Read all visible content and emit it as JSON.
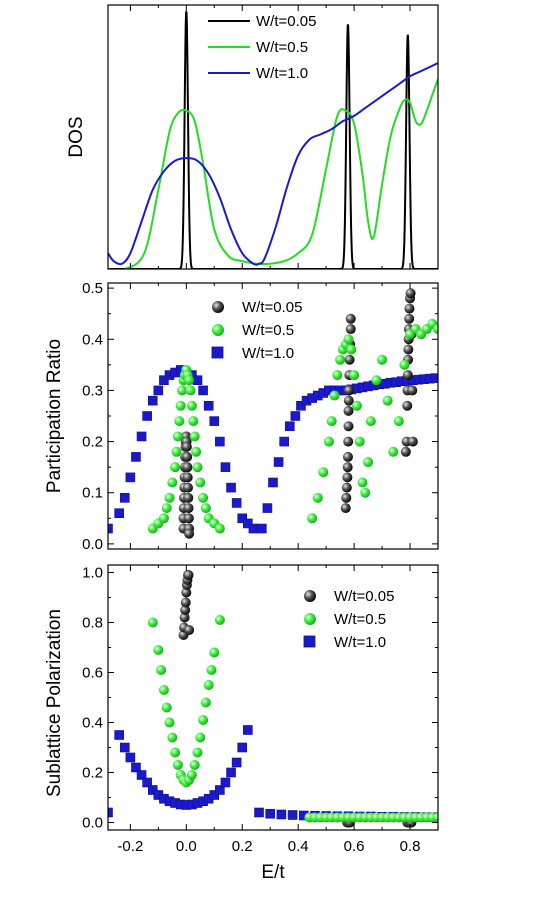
{
  "xlabel": "E/t",
  "colors": {
    "s005": "#000000",
    "s05": "#22dd22",
    "s10": "#1a1acc"
  },
  "chart_data": [
    {
      "type": "line",
      "ylabel": "DOS",
      "xlim": [
        -0.28,
        0.9
      ],
      "ylim": [
        0,
        1.0
      ],
      "legend": "top-center",
      "x_ticks": [
        -0.2,
        0.0,
        0.2,
        0.4,
        0.6,
        0.8
      ],
      "x_tick_labels_shown": false,
      "y_tick_labels_shown": false,
      "series": [
        {
          "name": "W/t=0.05",
          "color": "#000000",
          "peaks": [
            {
              "x": 0.0,
              "h": 0.98,
              "w": 0.006
            },
            {
              "x": 0.578,
              "h": 0.93,
              "w": 0.006
            },
            {
              "x": 0.792,
              "h": 0.89,
              "w": 0.006
            }
          ]
        },
        {
          "name": "W/t=0.5",
          "color": "#22dd22",
          "x": [
            -0.28,
            -0.22,
            -0.15,
            -0.1,
            -0.06,
            -0.03,
            0.0,
            0.03,
            0.06,
            0.1,
            0.15,
            0.2,
            0.25,
            0.3,
            0.35,
            0.4,
            0.45,
            0.5,
            0.54,
            0.57,
            0.6,
            0.63,
            0.65,
            0.67,
            0.7,
            0.73,
            0.76,
            0.78,
            0.8,
            0.82,
            0.84,
            0.86,
            0.88,
            0.9
          ],
          "y": [
            0.0,
            0.0,
            0.06,
            0.3,
            0.52,
            0.59,
            0.6,
            0.56,
            0.4,
            0.15,
            0.05,
            0.03,
            0.02,
            0.02,
            0.03,
            0.06,
            0.13,
            0.38,
            0.58,
            0.6,
            0.55,
            0.36,
            0.18,
            0.12,
            0.32,
            0.5,
            0.6,
            0.64,
            0.63,
            0.56,
            0.55,
            0.6,
            0.66,
            0.72
          ]
        },
        {
          "name": "W/t=1.0",
          "color": "#1a1acc",
          "x": [
            -0.28,
            -0.26,
            -0.23,
            -0.2,
            -0.16,
            -0.12,
            -0.08,
            -0.04,
            0.0,
            0.04,
            0.08,
            0.12,
            0.16,
            0.2,
            0.24,
            0.26,
            0.28,
            0.32,
            0.36,
            0.4,
            0.44,
            0.48,
            0.52,
            0.56,
            0.6,
            0.64,
            0.68,
            0.72,
            0.76,
            0.8,
            0.84,
            0.88,
            0.9
          ],
          "y": [
            0.06,
            0.03,
            0.02,
            0.06,
            0.18,
            0.3,
            0.37,
            0.41,
            0.42,
            0.41,
            0.36,
            0.27,
            0.15,
            0.06,
            0.02,
            0.02,
            0.04,
            0.16,
            0.31,
            0.43,
            0.49,
            0.51,
            0.53,
            0.56,
            0.58,
            0.61,
            0.64,
            0.67,
            0.7,
            0.73,
            0.75,
            0.77,
            0.78
          ]
        }
      ]
    },
    {
      "type": "scatter",
      "ylabel": "Participation Ratio",
      "xlim": [
        -0.28,
        0.9
      ],
      "ylim": [
        -0.01,
        0.51
      ],
      "legend": "top-center",
      "y_ticks": [
        0.0,
        0.1,
        0.2,
        0.3,
        0.4,
        0.5
      ],
      "y_tick_labels": [
        "0.0",
        "0.1",
        "0.2",
        "0.3",
        "0.4",
        "0.5"
      ],
      "x_ticks": [
        -0.2,
        0.0,
        0.2,
        0.4,
        0.6,
        0.8
      ],
      "x_tick_labels_shown": false,
      "series": [
        {
          "name": "W/t=0.05",
          "color": "#000000",
          "marker": "sphere",
          "x": [
            -0.01,
            -0.01,
            -0.009,
            -0.008,
            -0.007,
            -0.006,
            -0.005,
            -0.004,
            -0.003,
            -0.002,
            -0.001,
            0.0,
            0.001,
            0.002,
            0.003,
            0.004,
            0.005,
            0.006,
            0.007,
            0.008,
            0.009,
            0.01,
            0.01,
            0.57,
            0.572,
            0.574,
            0.576,
            0.577,
            0.578,
            0.579,
            0.58,
            0.58,
            0.581,
            0.582,
            0.583,
            0.584,
            0.586,
            0.588,
            0.588,
            0.785,
            0.788,
            0.79,
            0.791,
            0.792,
            0.793,
            0.794,
            0.795,
            0.796,
            0.797,
            0.798,
            0.8,
            0.802,
            0.805,
            0.808,
            0.81
          ],
          "y": [
            0.03,
            0.05,
            0.07,
            0.09,
            0.11,
            0.13,
            0.15,
            0.17,
            0.19,
            0.2,
            0.21,
            0.21,
            0.2,
            0.19,
            0.17,
            0.15,
            0.13,
            0.11,
            0.09,
            0.07,
            0.05,
            0.03,
            0.02,
            0.07,
            0.09,
            0.11,
            0.13,
            0.15,
            0.17,
            0.2,
            0.23,
            0.26,
            0.28,
            0.3,
            0.33,
            0.36,
            0.39,
            0.42,
            0.44,
            0.18,
            0.2,
            0.27,
            0.3,
            0.33,
            0.36,
            0.38,
            0.4,
            0.42,
            0.44,
            0.46,
            0.48,
            0.49,
            0.41,
            0.3,
            0.2
          ]
        },
        {
          "name": "W/t=0.5",
          "color": "#22dd22",
          "marker": "sphere",
          "x": [
            -0.12,
            -0.1,
            -0.08,
            -0.07,
            -0.06,
            -0.05,
            -0.04,
            -0.035,
            -0.03,
            -0.025,
            -0.02,
            -0.015,
            -0.01,
            -0.005,
            0.0,
            0.005,
            0.01,
            0.015,
            0.02,
            0.025,
            0.03,
            0.035,
            0.04,
            0.05,
            0.06,
            0.07,
            0.08,
            0.1,
            0.12,
            0.45,
            0.47,
            0.49,
            0.51,
            0.52,
            0.53,
            0.54,
            0.55,
            0.56,
            0.57,
            0.58,
            0.59,
            0.6,
            0.61,
            0.62,
            0.63,
            0.64,
            0.65,
            0.66,
            0.68,
            0.7,
            0.72,
            0.74,
            0.76,
            0.78,
            0.8,
            0.82,
            0.84,
            0.86,
            0.88,
            0.9
          ],
          "y": [
            0.03,
            0.04,
            0.05,
            0.07,
            0.09,
            0.12,
            0.15,
            0.18,
            0.21,
            0.24,
            0.27,
            0.3,
            0.32,
            0.33,
            0.34,
            0.33,
            0.32,
            0.3,
            0.27,
            0.24,
            0.21,
            0.18,
            0.15,
            0.12,
            0.09,
            0.07,
            0.05,
            0.04,
            0.03,
            0.05,
            0.09,
            0.14,
            0.2,
            0.24,
            0.29,
            0.33,
            0.36,
            0.38,
            0.39,
            0.4,
            0.38,
            0.33,
            0.27,
            0.2,
            0.12,
            0.1,
            0.16,
            0.24,
            0.32,
            0.36,
            0.28,
            0.18,
            0.24,
            0.35,
            0.41,
            0.42,
            0.41,
            0.42,
            0.43,
            0.42
          ]
        },
        {
          "name": "W/t=1.0",
          "color": "#1a1acc",
          "marker": "square",
          "x": [
            -0.28,
            -0.24,
            -0.22,
            -0.2,
            -0.18,
            -0.16,
            -0.14,
            -0.12,
            -0.1,
            -0.08,
            -0.06,
            -0.04,
            -0.02,
            0.0,
            0.02,
            0.04,
            0.06,
            0.08,
            0.1,
            0.12,
            0.14,
            0.16,
            0.18,
            0.2,
            0.22,
            0.24,
            0.27,
            0.29,
            0.31,
            0.33,
            0.35,
            0.37,
            0.39,
            0.41,
            0.43,
            0.45,
            0.47,
            0.49,
            0.51,
            0.53,
            0.55,
            0.57,
            0.59,
            0.61,
            0.63,
            0.65,
            0.67,
            0.69,
            0.71,
            0.73,
            0.75,
            0.77,
            0.79,
            0.81,
            0.83,
            0.85,
            0.87,
            0.89
          ],
          "y": [
            0.03,
            0.06,
            0.09,
            0.13,
            0.17,
            0.21,
            0.25,
            0.28,
            0.3,
            0.32,
            0.33,
            0.335,
            0.34,
            0.335,
            0.33,
            0.32,
            0.3,
            0.27,
            0.24,
            0.2,
            0.15,
            0.11,
            0.08,
            0.05,
            0.04,
            0.03,
            0.03,
            0.07,
            0.12,
            0.16,
            0.2,
            0.23,
            0.25,
            0.27,
            0.28,
            0.285,
            0.29,
            0.295,
            0.3,
            0.3,
            0.3,
            0.3,
            0.302,
            0.304,
            0.306,
            0.308,
            0.31,
            0.312,
            0.313,
            0.315,
            0.316,
            0.318,
            0.319,
            0.32,
            0.321,
            0.322,
            0.323,
            0.324
          ]
        }
      ]
    },
    {
      "type": "scatter",
      "ylabel": "Sublattice Polarization",
      "xlabel": "E/t",
      "xlim": [
        -0.28,
        0.9
      ],
      "ylim": [
        -0.03,
        1.03
      ],
      "legend": "top-right",
      "y_ticks": [
        0.0,
        0.2,
        0.4,
        0.6,
        0.8,
        1.0
      ],
      "y_tick_labels": [
        "0.0",
        "0.2",
        "0.4",
        "0.6",
        "0.8",
        "1.0"
      ],
      "x_ticks": [
        -0.2,
        0.0,
        0.2,
        0.4,
        0.6,
        0.8
      ],
      "x_tick_labels": [
        "-0.2",
        "0.0",
        "0.2",
        "0.4",
        "0.6",
        "0.8"
      ],
      "series": [
        {
          "name": "W/t=0.05",
          "color": "#000000",
          "marker": "sphere",
          "x": [
            -0.01,
            -0.008,
            -0.006,
            -0.004,
            -0.002,
            0.0,
            0.002,
            0.004,
            0.006,
            0.008,
            0.01,
            0.575,
            0.578,
            0.58,
            0.583,
            0.585,
            0.79,
            0.793,
            0.796,
            0.799,
            0.802,
            0.805
          ],
          "y": [
            0.75,
            0.78,
            0.82,
            0.85,
            0.88,
            0.92,
            0.95,
            0.97,
            0.99,
            0.99,
            0.77,
            0.0,
            0.0,
            0.0,
            0.0,
            0.0,
            0.0,
            0.0,
            0.0,
            0.0,
            0.0,
            0.0
          ]
        },
        {
          "name": "W/t=0.5",
          "color": "#22dd22",
          "marker": "sphere",
          "x": [
            -0.12,
            -0.1,
            -0.09,
            -0.08,
            -0.07,
            -0.06,
            -0.05,
            -0.04,
            -0.03,
            -0.02,
            -0.01,
            0.0,
            0.01,
            0.02,
            0.03,
            0.04,
            0.05,
            0.06,
            0.07,
            0.08,
            0.09,
            0.1,
            0.12,
            0.44,
            0.46,
            0.48,
            0.5,
            0.52,
            0.54,
            0.56,
            0.58,
            0.6,
            0.62,
            0.64,
            0.66,
            0.68,
            0.7,
            0.72,
            0.74,
            0.76,
            0.78,
            0.8,
            0.82,
            0.84,
            0.86,
            0.88,
            0.9
          ],
          "y": [
            0.8,
            0.69,
            0.61,
            0.53,
            0.46,
            0.4,
            0.34,
            0.28,
            0.23,
            0.19,
            0.17,
            0.16,
            0.17,
            0.19,
            0.23,
            0.28,
            0.34,
            0.41,
            0.48,
            0.55,
            0.61,
            0.68,
            0.81,
            0.02,
            0.02,
            0.02,
            0.02,
            0.02,
            0.02,
            0.02,
            0.02,
            0.02,
            0.02,
            0.02,
            0.02,
            0.02,
            0.02,
            0.02,
            0.02,
            0.02,
            0.02,
            0.02,
            0.02,
            0.02,
            0.02,
            0.02,
            0.02
          ]
        },
        {
          "name": "W/t=1.0",
          "color": "#1a1acc",
          "marker": "square",
          "x": [
            -0.28,
            -0.24,
            -0.22,
            -0.2,
            -0.18,
            -0.16,
            -0.14,
            -0.12,
            -0.1,
            -0.08,
            -0.06,
            -0.04,
            -0.02,
            0.0,
            0.02,
            0.04,
            0.06,
            0.08,
            0.1,
            0.12,
            0.14,
            0.16,
            0.18,
            0.2,
            0.22,
            0.26,
            0.3,
            0.34,
            0.38,
            0.42,
            0.46,
            0.5,
            0.54,
            0.58,
            0.62,
            0.66,
            0.7,
            0.74,
            0.78,
            0.82,
            0.86,
            0.9
          ],
          "y": [
            0.04,
            0.35,
            0.3,
            0.26,
            0.22,
            0.19,
            0.16,
            0.13,
            0.11,
            0.095,
            0.085,
            0.078,
            0.072,
            0.07,
            0.072,
            0.078,
            0.085,
            0.095,
            0.11,
            0.13,
            0.16,
            0.2,
            0.24,
            0.3,
            0.37,
            0.04,
            0.035,
            0.032,
            0.03,
            0.028,
            0.027,
            0.026,
            0.025,
            0.025,
            0.024,
            0.024,
            0.023,
            0.023,
            0.022,
            0.022,
            0.021,
            0.021
          ]
        }
      ]
    }
  ]
}
